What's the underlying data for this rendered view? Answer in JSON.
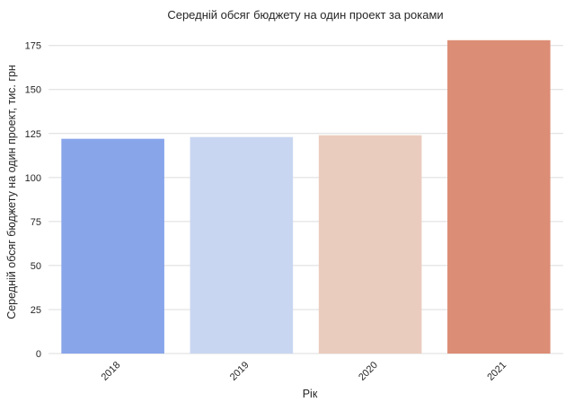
{
  "chart_data": {
    "type": "bar",
    "title": "Середній обсяг бюджету на один проект за роками",
    "xlabel": "Рік",
    "ylabel": "Середній обсяг бюджету на один проект, тис. грн",
    "categories": [
      "2018",
      "2019",
      "2020",
      "2021"
    ],
    "values": [
      122,
      123,
      124,
      178
    ],
    "bar_colors": [
      "#88a5ea",
      "#c9d6f1",
      "#eaccbe",
      "#dc8d75"
    ],
    "ylim": [
      0,
      183
    ],
    "yticks": [
      0,
      25,
      50,
      75,
      100,
      125,
      150,
      175
    ],
    "grid": "horizontal",
    "legend": "none"
  }
}
